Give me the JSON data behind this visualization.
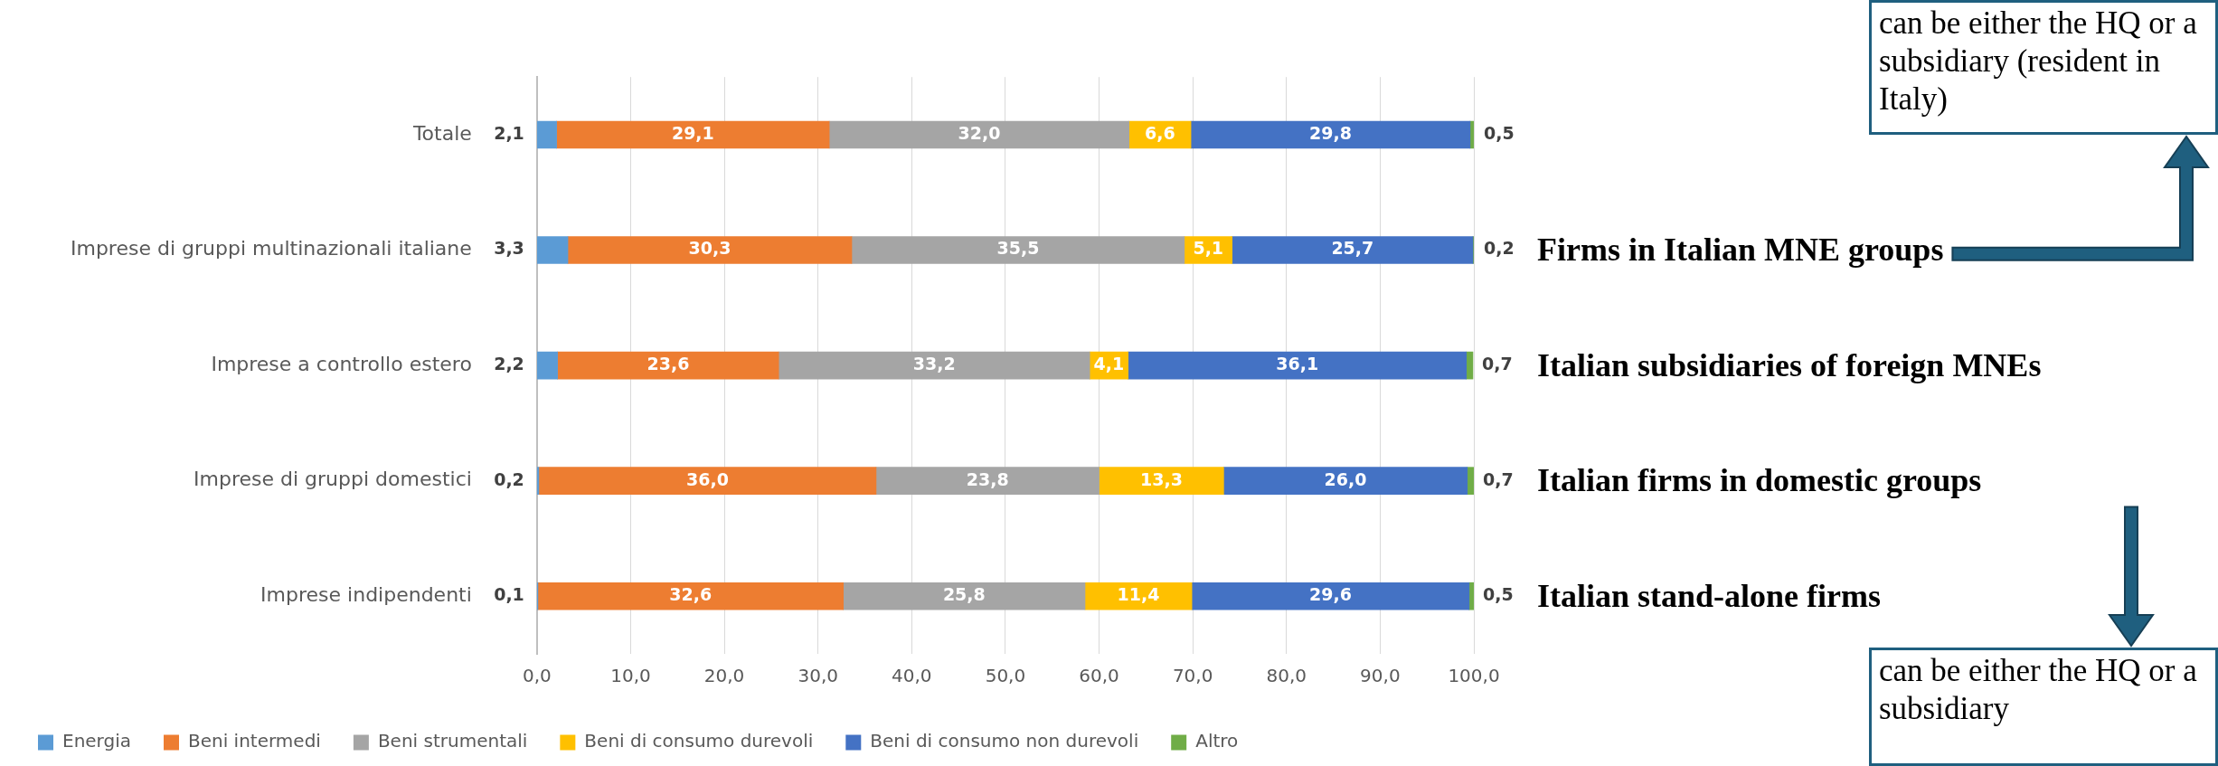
{
  "chart_data": {
    "type": "bar",
    "orientation": "horizontal",
    "stacked": true,
    "categories": [
      "Totale",
      "Imprese di gruppi multinazionali italiane",
      "Imprese a controllo estero",
      "Imprese di gruppi domestici",
      "Imprese indipendenti"
    ],
    "series": [
      {
        "name": "Energia",
        "color": "#5b9bd5",
        "values": [
          2.1,
          3.3,
          2.2,
          0.2,
          0.1
        ],
        "value_labels": [
          "2,1",
          "3,3",
          "2,2",
          "0,2",
          "0,1"
        ]
      },
      {
        "name": "Beni intermedi",
        "color": "#ed7d31",
        "values": [
          29.1,
          30.3,
          23.6,
          36.0,
          32.6
        ],
        "value_labels": [
          "29,1",
          "30,3",
          "23,6",
          "36,0",
          "32,6"
        ]
      },
      {
        "name": "Beni strumentali",
        "color": "#a5a5a5",
        "values": [
          32.0,
          35.5,
          33.2,
          23.8,
          25.8
        ],
        "value_labels": [
          "32,0",
          "35,5",
          "33,2",
          "23,8",
          "25,8"
        ]
      },
      {
        "name": "Beni di consumo durevoli",
        "color": "#ffc000",
        "values": [
          6.6,
          5.1,
          4.1,
          13.3,
          11.4
        ],
        "value_labels": [
          "6,6",
          "5,1",
          "4,1",
          "13,3",
          "11,4"
        ]
      },
      {
        "name": "Beni di consumo non durevoli",
        "color": "#4472c4",
        "values": [
          29.8,
          25.7,
          36.1,
          26.0,
          29.6
        ],
        "value_labels": [
          "29,8",
          "25,7",
          "36,1",
          "26,0",
          "29,6"
        ]
      },
      {
        "name": "Altro",
        "color": "#70ad47",
        "values": [
          0.5,
          0.2,
          0.7,
          0.7,
          0.5
        ],
        "value_labels": [
          "0,5",
          "0,2",
          "0,7",
          "0,7",
          "0,5"
        ]
      }
    ],
    "xlim": [
      0,
      100
    ],
    "xticks": [
      {
        "value": 0,
        "label": "0,0"
      },
      {
        "value": 10,
        "label": "10,0"
      },
      {
        "value": 20,
        "label": "20,0"
      },
      {
        "value": 30,
        "label": "30,0"
      },
      {
        "value": 40,
        "label": "40,0"
      },
      {
        "value": 50,
        "label": "50,0"
      },
      {
        "value": 60,
        "label": "60,0"
      },
      {
        "value": 70,
        "label": "70,0"
      },
      {
        "value": 80,
        "label": "80,0"
      },
      {
        "value": 90,
        "label": "90,0"
      },
      {
        "value": 100,
        "label": "100,0"
      }
    ],
    "grid": "x",
    "legend": "bottom",
    "annotations": [
      "can be either the HQ or a subsidiary (resident in Italy)",
      "Firms in Italian MNE groups",
      "Italian subsidiaries of foreign MNEs",
      "Italian firms in domestic groups",
      "Italian stand-alone firms",
      "can be either the HQ or a subsidiary"
    ]
  }
}
